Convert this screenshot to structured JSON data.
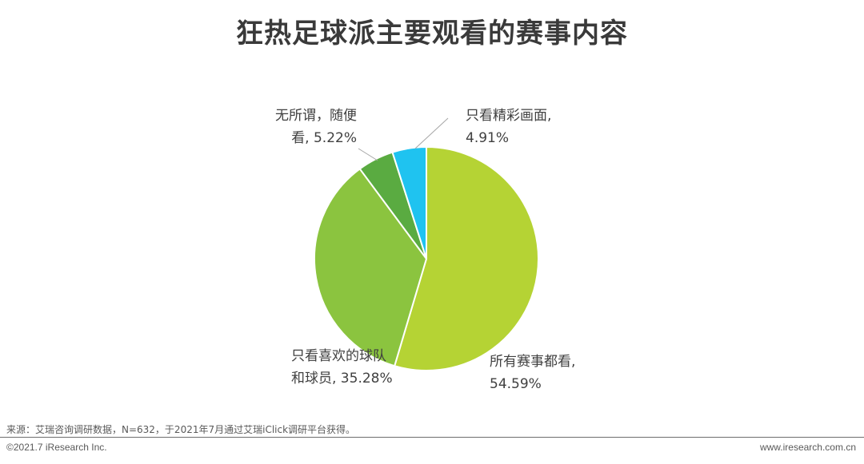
{
  "chart_data": {
    "type": "pie",
    "title": "狂热足球派主要观看的赛事内容",
    "slices": [
      {
        "label_lines": [
          "所有赛事都看,",
          "54.59%"
        ],
        "value": 54.59,
        "color": "#b5d334"
      },
      {
        "label_lines": [
          "只看喜欢的球队",
          "和球员, 35.28%"
        ],
        "value": 35.28,
        "color": "#8bc43f"
      },
      {
        "label_lines": [
          "无所谓，随便",
          "看, 5.22%"
        ],
        "value": 5.22,
        "color": "#5aab41"
      },
      {
        "label_lines": [
          "只看精彩画面,",
          "4.91%"
        ],
        "value": 4.91,
        "color": "#1fc3f0"
      }
    ]
  },
  "footer": {
    "source": "来源：艾瑞咨询调研数据，N=632，于2021年7月通过艾瑞iClick调研平台获得。",
    "copyright": "©2021.7 iResearch Inc.",
    "website": "www.iresearch.com.cn"
  }
}
